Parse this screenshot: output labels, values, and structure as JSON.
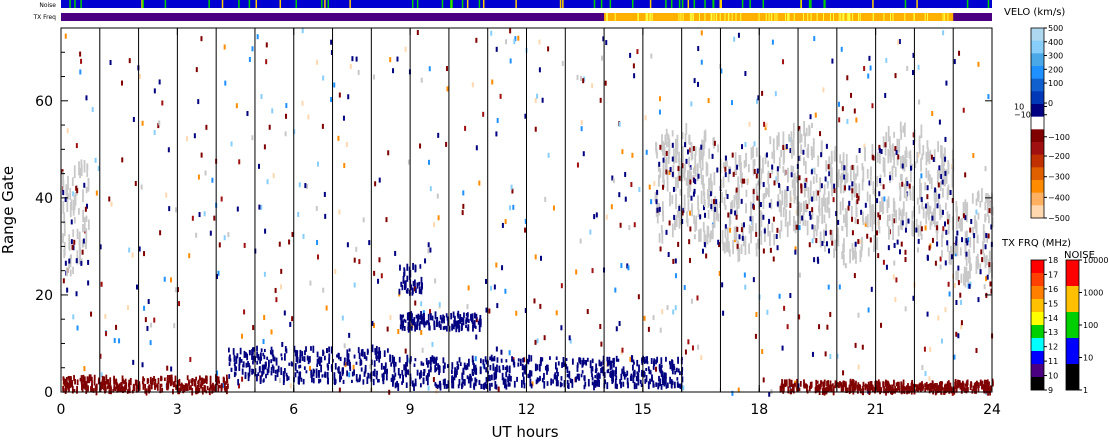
{
  "chart_data": {
    "type": "heatmap",
    "xlabel": "UT hours",
    "ylabel": "Range Gate",
    "x_ticks": [
      "0",
      "3",
      "6",
      "9",
      "12",
      "15",
      "18",
      "21",
      "24"
    ],
    "y_ticks": [
      "0",
      "20",
      "40",
      "60"
    ],
    "xlim": [
      0,
      24
    ],
    "ylim": [
      0,
      75
    ],
    "strips": {
      "noise_label": "Noise",
      "txfreq_label": "TX Freq",
      "txfreq_high_segment_hours": [
        14,
        23
      ],
      "base_color": "#0000d0",
      "txfreq_low_color": "#4b0082",
      "txfreq_high_color": "#ffb000"
    },
    "scan_boundaries_hours": [
      1,
      2,
      3,
      4,
      5,
      6,
      7,
      8,
      9,
      10,
      11,
      12,
      13,
      14,
      15,
      16,
      17,
      18,
      19,
      20,
      21,
      22,
      23
    ],
    "features": [
      {
        "kind": "ground_scatter",
        "color": "#c8c8c8",
        "t0": 0.0,
        "t1": 0.7,
        "r_low": 20,
        "r_high": 44
      },
      {
        "kind": "ground_scatter",
        "color": "#c8c8c8",
        "t0": 15.3,
        "t1": 23.0,
        "r_low": 27,
        "r_high": 52
      },
      {
        "kind": "ground_scatter",
        "color": "#c8c8c8",
        "t0": 23.0,
        "t1": 24.0,
        "r_low": 18,
        "r_high": 38
      },
      {
        "kind": "near_range_echo",
        "color": "#000080",
        "t0": 4.3,
        "t1": 8.5,
        "r_low": 2,
        "r_high": 9
      },
      {
        "kind": "near_range_echo",
        "color": "#000080",
        "t0": 8.5,
        "t1": 16.0,
        "r_low": 1,
        "r_high": 7
      },
      {
        "kind": "near_range_echo",
        "color": "#800000",
        "t0": 0.0,
        "t1": 4.3,
        "r_low": 0,
        "r_high": 3
      },
      {
        "kind": "near_range_echo",
        "color": "#800000",
        "t0": 18.5,
        "t1": 24.0,
        "r_low": 0,
        "r_high": 2
      },
      {
        "kind": "patch",
        "color": "#000080",
        "t0": 8.7,
        "t1": 10.8,
        "r_low": 13,
        "r_high": 16
      },
      {
        "kind": "patch",
        "color": "#000080",
        "t0": 8.7,
        "t1": 9.3,
        "r_low": 20,
        "r_high": 26
      }
    ],
    "velocity_colorbar": {
      "title": "VELO (km/s)",
      "ticks": [
        "500",
        "400",
        "300",
        "200",
        "100",
        "0",
        "10",
        "−10",
        "−100",
        "−200",
        "−300",
        "−400",
        "−500"
      ],
      "colors_top_to_bottom": [
        "#add8f0",
        "#87cefa",
        "#4aa8e8",
        "#1e90ff",
        "#1060d0",
        "#0038b8",
        "#000080",
        "#ffffff",
        "#800000",
        "#a01010",
        "#c03000",
        "#e06000",
        "#ff8c00",
        "#ffb060",
        "#ffd8b0"
      ]
    },
    "txfreq_colorbar": {
      "title": "TX FRQ (MHz)",
      "ticks": [
        "18",
        "17",
        "16",
        "15",
        "14",
        "13",
        "12",
        "11",
        "10",
        "9"
      ],
      "colors_top_to_bottom": [
        "#ff0000",
        "#ff4000",
        "#ff8000",
        "#ffc000",
        "#ffff00",
        "#00d000",
        "#00ffff",
        "#0000ff",
        "#4b0082",
        "#000000"
      ]
    },
    "noise_colorbar": {
      "title": "NOISE",
      "ticks": [
        "10000",
        "1000",
        "100",
        "10",
        "1"
      ],
      "colors_top_to_bottom": [
        "#ff0000",
        "#ffc000",
        "#00d000",
        "#0000ff",
        "#000000"
      ]
    }
  }
}
